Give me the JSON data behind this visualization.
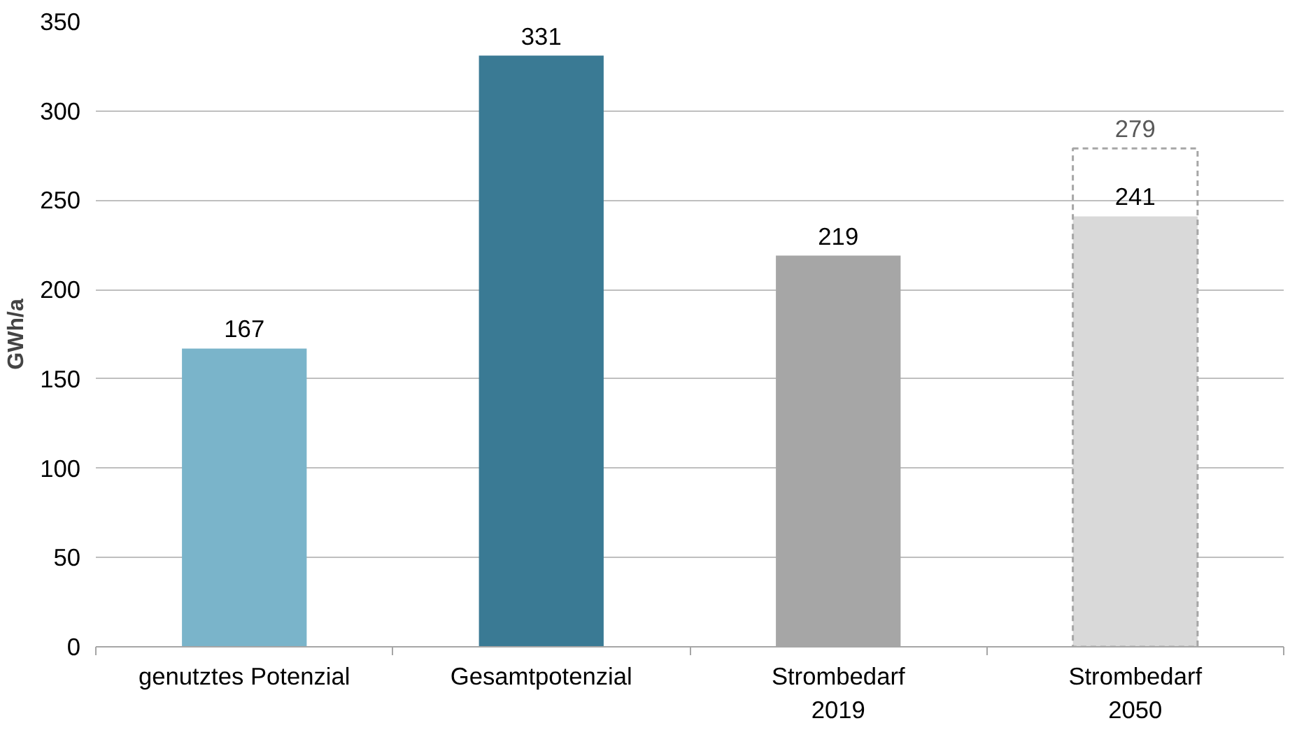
{
  "chart_data": {
    "type": "bar",
    "categories": [
      "genutztes Potenzial",
      "Gesamtpotenzial",
      "Strombedarf\n2019",
      "Strombedarf\n2050"
    ],
    "ylabel": "GWh/a",
    "series": [
      {
        "colors": [
          "#7ab4ca",
          "#3a7a94",
          "#a6a6a6",
          "#d9d9d9"
        ],
        "values": [
          167,
          331,
          219,
          241
        ]
      },
      {
        "line_style": "dashed",
        "color": "#a6a6a6",
        "values": [
          null,
          null,
          null,
          279
        ]
      }
    ],
    "ylim": [
      0,
      350
    ],
    "yticks": [
      0,
      50,
      100,
      150,
      200,
      250,
      300,
      350
    ],
    "grid": "y",
    "data_labels": true
  }
}
